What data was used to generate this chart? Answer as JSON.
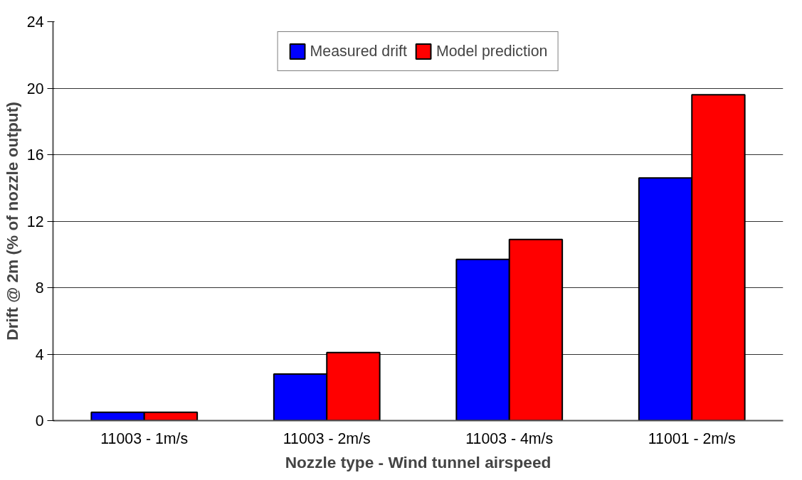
{
  "chart_data": {
    "type": "bar",
    "xlabel": "Nozzle type - Wind tunnel airspeed",
    "ylabel": "Drift @ 2m (% of nozzle output)",
    "categories": [
      "11003 - 1m/s",
      "11003 - 2m/s",
      "11003 - 4m/s",
      "11001 - 2m/s"
    ],
    "series": [
      {
        "name": "Measured drift",
        "color": "#0000ff",
        "values": [
          0.5,
          2.8,
          9.7,
          14.6
        ]
      },
      {
        "name": "Model prediction",
        "color": "#ff0000",
        "values": [
          0.5,
          4.1,
          10.9,
          19.6
        ]
      }
    ],
    "ylim": [
      0,
      24
    ],
    "yticks": [
      0,
      4,
      8,
      12,
      16,
      20,
      24
    ],
    "grid": "y",
    "legend": "top"
  }
}
